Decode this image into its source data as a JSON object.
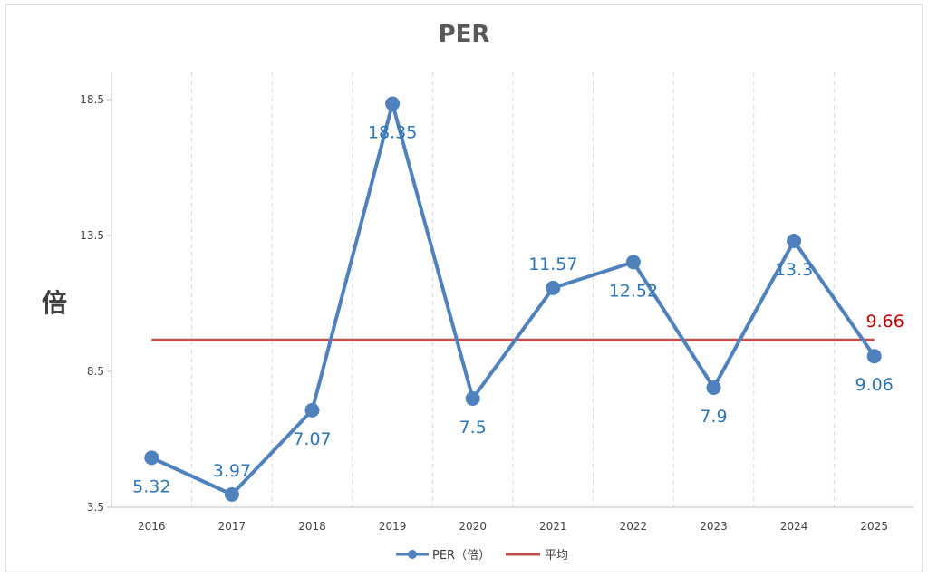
{
  "chart_data": {
    "type": "line",
    "title": "PER",
    "ylabel": "倍",
    "xlabel": "",
    "categories": [
      "2016",
      "2017",
      "2018",
      "2019",
      "2020",
      "2021",
      "2022",
      "2023",
      "2024",
      "2025"
    ],
    "yticks": [
      "3.5",
      "8.5",
      "13.5",
      "18.5"
    ],
    "ylim": [
      3.5,
      19.5
    ],
    "grid": {
      "vertical": "dashed",
      "horizontal": "none"
    },
    "legend_position": "bottom",
    "series": [
      {
        "name": "PER（倍）",
        "values": [
          5.32,
          3.97,
          7.07,
          18.35,
          7.5,
          11.57,
          12.52,
          7.9,
          13.3,
          9.06
        ],
        "labels": [
          "5.32",
          "3.97",
          "7.07",
          "18.35",
          "7.5",
          "11.57",
          "12.52",
          "7.9",
          "13.3",
          "9.06"
        ],
        "color": "#4f81bd",
        "label_color": "#2e75b6"
      },
      {
        "name": "平均",
        "value": 9.66,
        "label": "9.66",
        "color": "#c0504d",
        "label_color": "#c00000"
      }
    ]
  }
}
